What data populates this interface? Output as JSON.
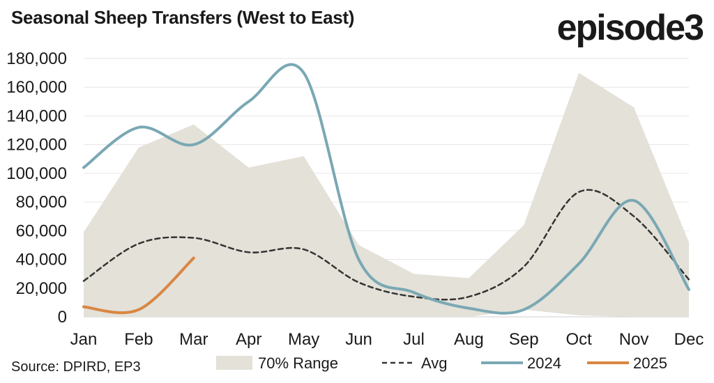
{
  "header": {
    "title": "Seasonal Sheep Transfers (West to East)",
    "brand": "episode3"
  },
  "footer": {
    "source": "Source: DPIRD, EP3"
  },
  "colors": {
    "range": "#e3e1d8",
    "avg": "#333333",
    "s2024": "#7aa8b4",
    "s2025": "#d98641",
    "grid": "#e6e6e6"
  },
  "chart_data": {
    "type": "line",
    "title": "Seasonal Sheep Transfers (West to East)",
    "categories": [
      "Jan",
      "Feb",
      "Mar",
      "Apr",
      "May",
      "Jun",
      "Jul",
      "Aug",
      "Sep",
      "Oct",
      "Nov",
      "Dec"
    ],
    "ylim": [
      0,
      180000
    ],
    "yticks": [
      0,
      20000,
      40000,
      60000,
      80000,
      100000,
      120000,
      140000,
      160000,
      180000
    ],
    "ytick_labels": [
      "0",
      "20,000",
      "40,000",
      "60,000",
      "80,000",
      "100,000",
      "120,000",
      "140,000",
      "160,000",
      "180,000"
    ],
    "grid": true,
    "legend_position": "bottom",
    "range": {
      "name": "70% Range",
      "upper": [
        59000,
        118000,
        134000,
        104000,
        112000,
        50000,
        30000,
        27000,
        64000,
        170000,
        146000,
        52000
      ],
      "lower": [
        0,
        0,
        0,
        0,
        0,
        0,
        0,
        0,
        5000,
        1000,
        0,
        0
      ]
    },
    "series": [
      {
        "name": "Avg",
        "style": "dashed",
        "values": [
          25000,
          51000,
          55000,
          45000,
          47000,
          24000,
          14000,
          14000,
          35000,
          87000,
          70000,
          26000
        ]
      },
      {
        "name": "2024",
        "style": "solid",
        "values": [
          104000,
          132000,
          120000,
          150000,
          170000,
          40000,
          17000,
          6000,
          5000,
          37000,
          81000,
          19000
        ]
      },
      {
        "name": "2025",
        "style": "solid",
        "values": [
          7000,
          5000,
          41000,
          null,
          null,
          null,
          null,
          null,
          null,
          null,
          null,
          null
        ]
      }
    ]
  }
}
